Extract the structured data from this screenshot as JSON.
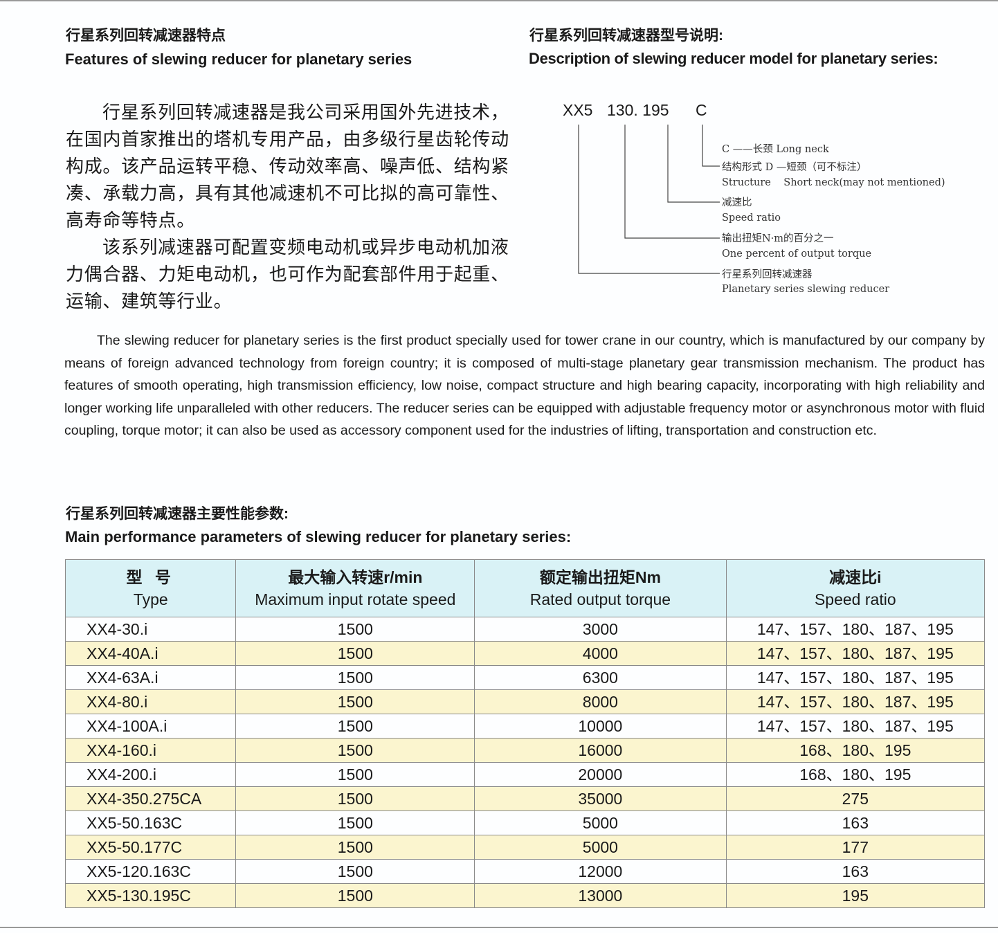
{
  "features": {
    "title_cn": "行星系列回转减速器特点",
    "title_en": "Features of slewing reducer for planetary series",
    "paragraphs_cn": [
      "行星系列回转减速器是我公司采用国外先进技术，在国内首家推出的塔机专用产品，由多级行星齿轮传动构成。该产品运转平稳、传动效率高、噪声低、结构紧凑、承载力高，具有其他减速机不可比拟的高可靠性、高寿命等特点。",
      "该系列减速器可配置变频电动机或异步电动机加液力偶合器、力矩电动机，也可作为配套部件用于起重、运输、建筑等行业。"
    ]
  },
  "model_description": {
    "title_cn": "行星系列回转减速器型号说明:",
    "title_en": "Description of slewing reducer model for planetary series:",
    "code_parts": [
      "XX5",
      "130. 195",
      "C"
    ],
    "legend": [
      "C ——长颈 Long neck",
      "结构形式 D —短颈（可不标注）",
      "Structure    Short neck(may not mentioned)",
      "减速比",
      "Speed ratio",
      "输出扭矩N·m的百分之一",
      "One percent of output torque",
      "行星系列回转减速器",
      "Planetary series slewing reducer"
    ]
  },
  "description_en": "The slewing reducer for planetary series is the first product specially used for tower crane in our country, which is manufactured by our company by means of foreign advanced technology from foreign country; it is composed of multi-stage planetary gear transmission mechanism. The product has features of smooth operating, high transmission efficiency, low noise, compact structure and high bearing capacity, incorporating with high reliability and longer working life unparalleled with other reducers. The reducer series can be equipped with adjustable frequency motor or asynchronous motor with fluid coupling, torque motor; it can also be used as accessory component used for the industries of lifting, transportation and construction etc.",
  "table": {
    "title_cn": "行星系列回转减速器主要性能参数:",
    "title_en": "Main performance parameters of slewing reducer for planetary series:",
    "headers": [
      [
        "型 号",
        "Type"
      ],
      [
        "最大输入转速r/min",
        "Maximum input rotate speed"
      ],
      [
        "额定输出扭矩Nm",
        "Rated output torque"
      ],
      [
        "减速比i",
        "Speed  ratio"
      ]
    ],
    "rows": [
      [
        "XX4-30.i",
        "1500",
        "3000",
        "147、157、180、187、195"
      ],
      [
        "XX4-40A.i",
        "1500",
        "4000",
        "147、157、180、187、195"
      ],
      [
        "XX4-63A.i",
        "1500",
        "6300",
        "147、157、180、187、195"
      ],
      [
        "XX4-80.i",
        "1500",
        "8000",
        "147、157、180、187、195"
      ],
      [
        "XX4-100A.i",
        "1500",
        "10000",
        "147、157、180、187、195"
      ],
      [
        "XX4-160.i",
        "1500",
        "16000",
        "168、180、195"
      ],
      [
        "XX4-200.i",
        "1500",
        "20000",
        "168、180、195"
      ],
      [
        "XX4-350.275CA",
        "1500",
        "35000",
        "275"
      ],
      [
        "XX5-50.163C",
        "1500",
        "5000",
        "163"
      ],
      [
        "XX5-50.177C",
        "1500",
        "5000",
        "177"
      ],
      [
        "XX5-120.163C",
        "1500",
        "12000",
        "163"
      ],
      [
        "XX5-130.195C",
        "1500",
        "13000",
        "195"
      ]
    ]
  }
}
